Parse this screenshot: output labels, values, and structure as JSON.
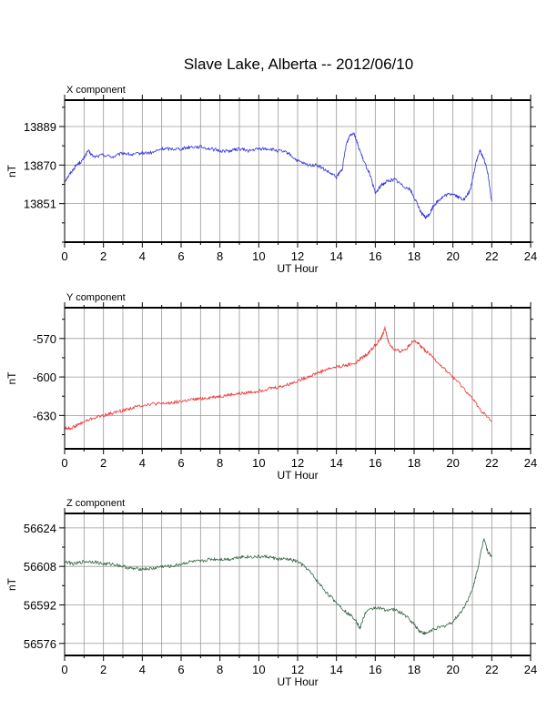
{
  "title": "Slave Lake, Alberta -- 2012/06/10",
  "chart_data": [
    {
      "type": "line",
      "title": "X component",
      "xlabel": "UT Hour",
      "ylabel": "nT",
      "xlim": [
        0,
        24
      ],
      "ylim": [
        13832,
        13902
      ],
      "xticks": [
        0,
        2,
        4,
        6,
        8,
        10,
        12,
        14,
        16,
        18,
        20,
        22,
        24
      ],
      "yticks": [
        13851,
        13870,
        13889
      ],
      "grid": true,
      "series": [
        {
          "color": "#3333dd",
          "x": [
            0,
            0.3,
            0.6,
            0.9,
            1.2,
            1.5,
            2,
            2.5,
            3,
            3.5,
            4,
            4.5,
            5,
            5.5,
            6,
            6.5,
            7,
            7.5,
            8,
            8.5,
            9,
            9.5,
            10,
            10.5,
            11,
            11.5,
            12,
            12.5,
            13,
            13.5,
            14,
            14.3,
            14.5,
            14.7,
            14.9,
            15.1,
            15.4,
            15.7,
            16,
            16.3,
            16.6,
            17,
            17.4,
            17.8,
            18.1,
            18.4,
            18.6,
            18.8,
            19,
            19.3,
            19.6,
            20,
            20.3,
            20.6,
            20.9,
            21.2,
            21.4,
            21.6,
            21.8,
            22
          ],
          "y": [
            13862,
            13866,
            13870,
            13872,
            13877,
            13874,
            13875,
            13874,
            13876,
            13875,
            13876,
            13876,
            13878,
            13878,
            13878,
            13879,
            13879,
            13878,
            13877,
            13877,
            13878,
            13877,
            13878,
            13878,
            13877,
            13876,
            13872,
            13870,
            13870,
            13867,
            13864,
            13868,
            13880,
            13885,
            13886,
            13880,
            13872,
            13866,
            13856,
            13860,
            13862,
            13863,
            13860,
            13858,
            13852,
            13846,
            13844,
            13846,
            13850,
            13853,
            13855,
            13856,
            13854,
            13853,
            13858,
            13872,
            13877,
            13873,
            13866,
            13852
          ]
        }
      ]
    },
    {
      "type": "line",
      "title": "Y component",
      "xlabel": "UT Hour",
      "ylabel": "nT",
      "xlim": [
        0,
        24
      ],
      "ylim": [
        -656,
        -546
      ],
      "xticks": [
        0,
        2,
        4,
        6,
        8,
        10,
        12,
        14,
        16,
        18,
        20,
        22,
        24
      ],
      "yticks": [
        -630,
        -600,
        -570
      ],
      "grid": true,
      "series": [
        {
          "color": "#ee3333",
          "x": [
            0,
            0.3,
            0.6,
            1,
            1.5,
            2,
            2.5,
            3,
            3.5,
            4,
            4.5,
            5,
            5.5,
            6,
            6.5,
            7,
            7.5,
            8,
            8.5,
            9,
            9.5,
            10,
            10.5,
            11,
            11.5,
            12,
            12.5,
            13,
            13.5,
            14,
            14.5,
            15,
            15.3,
            15.6,
            16,
            16.3,
            16.5,
            16.7,
            17,
            17.3,
            17.6,
            18,
            18.3,
            18.6,
            19,
            19.5,
            20,
            20.5,
            21,
            21.5,
            22
          ],
          "y": [
            -640,
            -640,
            -638,
            -635,
            -632,
            -630,
            -628,
            -626,
            -624,
            -622,
            -621,
            -621,
            -620,
            -619,
            -618,
            -617,
            -616,
            -615,
            -614,
            -613,
            -612,
            -611,
            -609,
            -608,
            -606,
            -603,
            -600,
            -597,
            -594,
            -592,
            -591,
            -589,
            -585,
            -582,
            -575,
            -570,
            -562,
            -574,
            -579,
            -580,
            -578,
            -571,
            -575,
            -580,
            -585,
            -593,
            -600,
            -608,
            -617,
            -627,
            -635
          ]
        }
      ]
    },
    {
      "type": "line",
      "title": "Z component",
      "xlabel": "UT Hour",
      "ylabel": "nT",
      "xlim": [
        0,
        24
      ],
      "ylim": [
        56571,
        56630
      ],
      "xticks": [
        0,
        2,
        4,
        6,
        8,
        10,
        12,
        14,
        16,
        18,
        20,
        22,
        24
      ],
      "yticks": [
        56576,
        56592,
        56608,
        56624
      ],
      "grid": true,
      "series": [
        {
          "color": "#336644",
          "x": [
            0,
            0.5,
            1,
            1.5,
            2,
            2.5,
            3,
            3.5,
            4,
            4.5,
            5,
            5.5,
            6,
            6.5,
            7,
            7.5,
            8,
            8.5,
            9,
            9.5,
            10,
            10.5,
            11,
            11.5,
            12,
            12.5,
            13,
            13.5,
            14,
            14.5,
            15,
            15.2,
            15.5,
            16,
            16.5,
            17,
            17.5,
            18,
            18.3,
            18.6,
            19,
            19.5,
            20,
            20.5,
            21,
            21.3,
            21.6,
            21.8,
            22
          ],
          "y": [
            56610,
            56609,
            56610,
            56610,
            56609,
            56609,
            56608,
            56607,
            56607,
            56607,
            56608,
            56608,
            56609,
            56610,
            56610,
            56611,
            56611,
            56611,
            56612,
            56612,
            56612,
            56612,
            56611,
            56611,
            56610,
            56607,
            56602,
            56597,
            56593,
            56589,
            56586,
            56582,
            56589,
            56591,
            56590,
            56590,
            56588,
            56584,
            56581,
            56580,
            56582,
            56583,
            56585,
            56590,
            56598,
            56608,
            56620,
            56614,
            56612
          ]
        }
      ]
    }
  ]
}
